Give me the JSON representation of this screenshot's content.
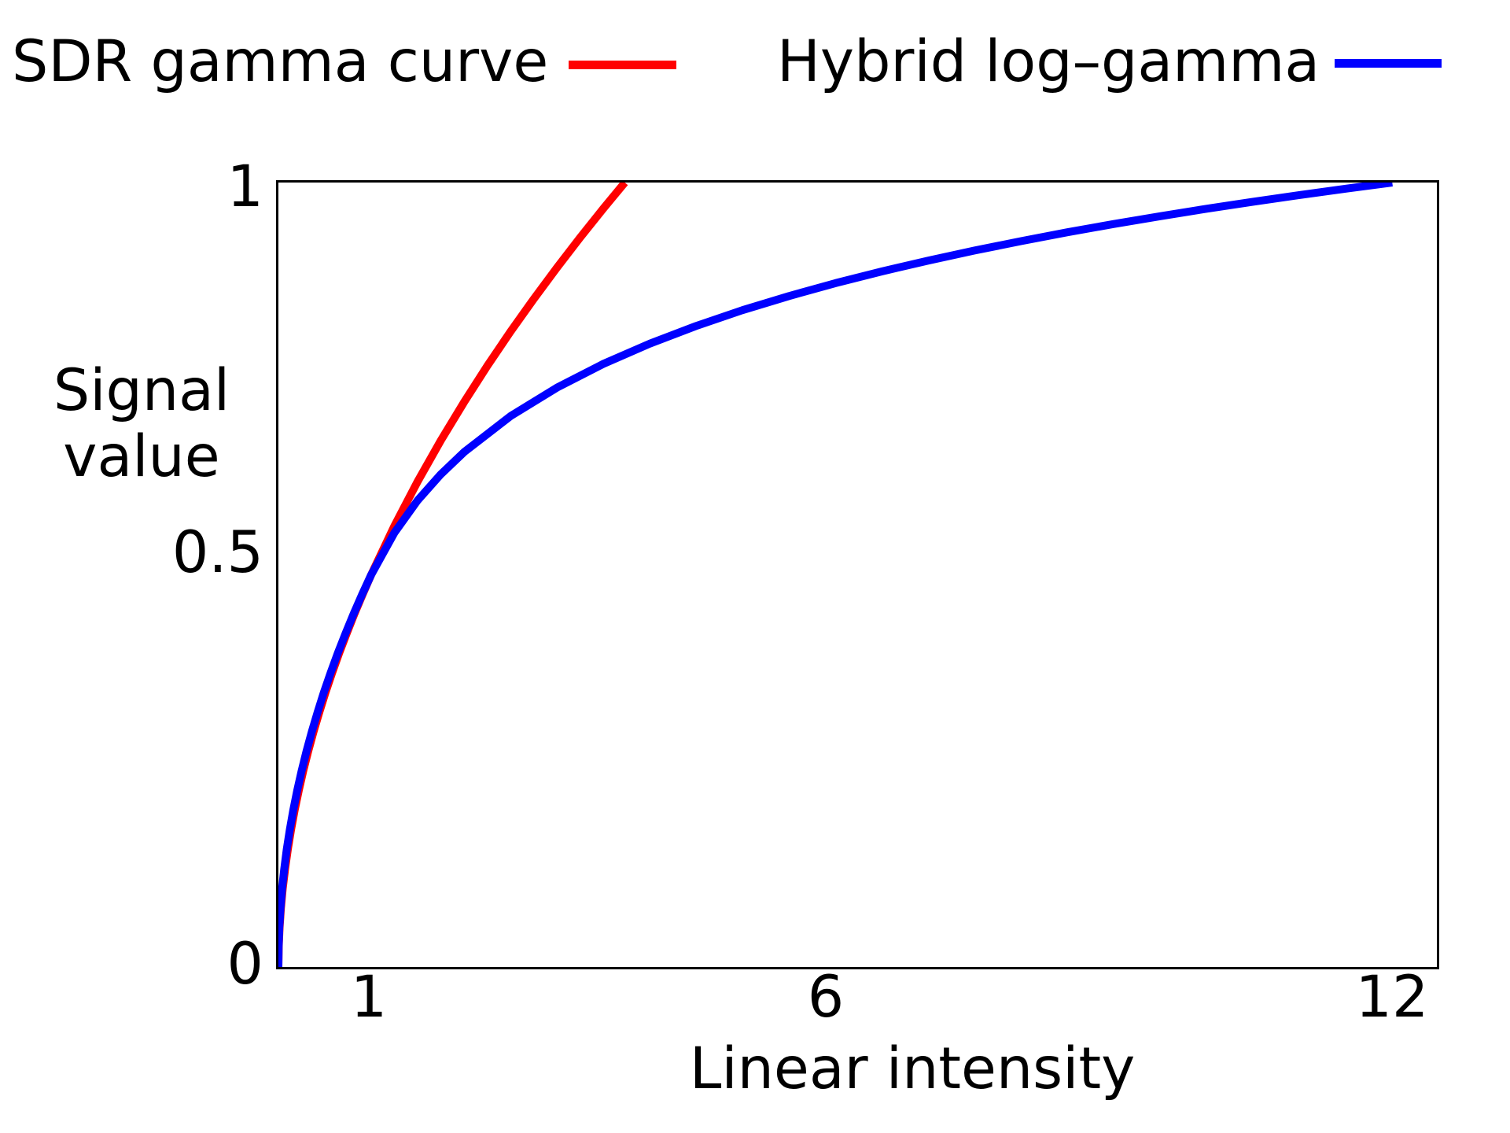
{
  "legend": {
    "items": [
      {
        "label": "SDR gamma curve",
        "color": "#ff0000"
      },
      {
        "label": "Hybrid log–gamma",
        "color": "#0000ff"
      }
    ]
  },
  "axes": {
    "xlabel": "Linear intensity",
    "ylabel": "Signal value",
    "xtick_labels": [
      "1",
      "6",
      "12"
    ],
    "ytick_labels": [
      "1",
      "0.5",
      "0"
    ]
  },
  "chart_data": {
    "type": "line",
    "title": "",
    "xlabel": "Linear intensity",
    "ylabel": "Signal value",
    "xlim": [
      0,
      12.48
    ],
    "ylim": [
      0,
      1
    ],
    "xticks": [
      1,
      6,
      12
    ],
    "yticks": [
      0,
      0.5,
      1
    ],
    "grid": false,
    "legend_position": "top",
    "series": [
      {
        "name": "SDR gamma curve",
        "color": "#ff0000",
        "points": [
          [
            0,
            0
          ],
          [
            0.0034,
            0.025
          ],
          [
            0.0126,
            0.05
          ],
          [
            0.0272,
            0.075
          ],
          [
            0.047,
            0.1
          ],
          [
            0.0718,
            0.125
          ],
          [
            0.1015,
            0.15
          ],
          [
            0.136,
            0.175
          ],
          [
            0.1754,
            0.2
          ],
          [
            0.2193,
            0.225
          ],
          [
            0.2679,
            0.25
          ],
          [
            0.3211,
            0.275
          ],
          [
            0.3789,
            0.3
          ],
          [
            0.4411,
            0.325
          ],
          [
            0.5078,
            0.35
          ],
          [
            0.5789,
            0.375
          ],
          [
            0.6544,
            0.4
          ],
          [
            0.7343,
            0.425
          ],
          [
            0.8186,
            0.45
          ],
          [
            0.9072,
            0.475
          ],
          [
            1,
            0.5
          ],
          [
            1.25,
            0.5623
          ],
          [
            1.5,
            0.6189
          ],
          [
            1.75,
            0.6713
          ],
          [
            2,
            0.7201
          ],
          [
            2.25,
            0.7662
          ],
          [
            2.5,
            0.8099
          ],
          [
            2.75,
            0.8515
          ],
          [
            3,
            0.8914
          ],
          [
            3.25,
            0.9298
          ],
          [
            3.5,
            0.9668
          ],
          [
            3.732,
            1.0
          ]
        ]
      },
      {
        "name": "Hybrid log–gamma",
        "color": "#0000ff",
        "points": [
          [
            0,
            0
          ],
          [
            0.0025,
            0.025
          ],
          [
            0.01,
            0.05
          ],
          [
            0.0225,
            0.075
          ],
          [
            0.04,
            0.1
          ],
          [
            0.0625,
            0.125
          ],
          [
            0.09,
            0.15
          ],
          [
            0.1225,
            0.175
          ],
          [
            0.16,
            0.2
          ],
          [
            0.2025,
            0.225
          ],
          [
            0.25,
            0.25
          ],
          [
            0.3025,
            0.275
          ],
          [
            0.36,
            0.3
          ],
          [
            0.4225,
            0.325
          ],
          [
            0.49,
            0.35
          ],
          [
            0.5625,
            0.375
          ],
          [
            0.64,
            0.4
          ],
          [
            0.7225,
            0.425
          ],
          [
            0.81,
            0.45
          ],
          [
            0.9025,
            0.475
          ],
          [
            1,
            0.5
          ],
          [
            1.25,
            0.5536
          ],
          [
            1.5,
            0.5948
          ],
          [
            1.75,
            0.6282
          ],
          [
            2,
            0.6564
          ],
          [
            2.5,
            0.7022
          ],
          [
            3,
            0.7385
          ],
          [
            3.5,
            0.7688
          ],
          [
            4,
            0.7946
          ],
          [
            4.5,
            0.8172
          ],
          [
            5,
            0.8373
          ],
          [
            5.5,
            0.8553
          ],
          [
            6,
            0.8717
          ],
          [
            6.5,
            0.8867
          ],
          [
            7,
            0.9005
          ],
          [
            7.5,
            0.9133
          ],
          [
            8,
            0.9253
          ],
          [
            8.5,
            0.9366
          ],
          [
            9,
            0.9471
          ],
          [
            9.5,
            0.9571
          ],
          [
            10,
            0.9666
          ],
          [
            10.5,
            0.9755
          ],
          [
            11,
            0.9841
          ],
          [
            11.5,
            0.9922
          ],
          [
            12,
            1.0
          ]
        ]
      }
    ]
  }
}
